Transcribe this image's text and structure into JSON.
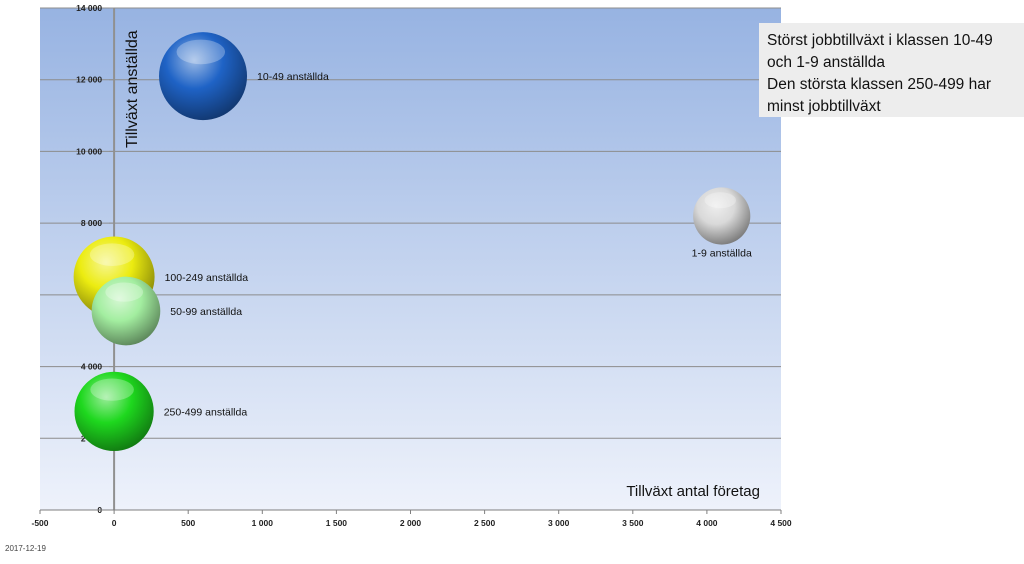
{
  "chart_data": {
    "type": "bubble",
    "title": "",
    "xlabel": "Tillväxt antal företag",
    "ylabel": "Tillväxt anställda",
    "xlim": [
      -500,
      4500
    ],
    "ylim": [
      0,
      14000
    ],
    "x_ticks": [
      -500,
      0,
      500,
      1000,
      1500,
      2000,
      2500,
      3000,
      3500,
      4000,
      4500
    ],
    "y_ticks": [
      0,
      2000,
      4000,
      6000,
      8000,
      10000,
      12000,
      14000
    ],
    "x_tick_labels": [
      "-500",
      "0",
      "500",
      "1 000",
      "1 500",
      "2 000",
      "2 500",
      "3 000",
      "3 500",
      "4 000",
      "4 500"
    ],
    "y_tick_labels": [
      "0",
      "2 000",
      "4 000",
      "6 000",
      "8 000",
      "10 000",
      "12 000",
      "14 000"
    ],
    "grid": "horizontal",
    "series": [
      {
        "name": "1-9 anställda",
        "x": 4100,
        "y": 8200,
        "size": 0.65,
        "color": "#d9d9d9",
        "label_pos": "below"
      },
      {
        "name": "10-49 anställda",
        "x": 600,
        "y": 12100,
        "size": 1.0,
        "color": "#1f63c6",
        "label_pos": "right"
      },
      {
        "name": "100-249 anställda",
        "x": 0,
        "y": 6500,
        "size": 0.92,
        "color": "#ecec10",
        "label_pos": "right"
      },
      {
        "name": "50-99 anställda",
        "x": 80,
        "y": 5550,
        "size": 0.78,
        "color": "#a3eea0",
        "label_pos": "right"
      },
      {
        "name": "250-499 anställda",
        "x": 0,
        "y": 2750,
        "size": 0.9,
        "color": "#1ed81e",
        "label_pos": "right"
      }
    ]
  },
  "annotation": {
    "lines": [
      "Störst jobbtillväxt  i klassen 10-49",
      "och 1-9 anställda",
      "Den största  klassen 250-499 har",
      "minst jobbtillväxt"
    ]
  },
  "footer": {
    "date": "2017-12-19"
  },
  "colors": {
    "plot_top": "#97b3e2",
    "plot_bottom": "#eef2fb",
    "gridline": "#8c8c8c",
    "axis": "#909090"
  }
}
